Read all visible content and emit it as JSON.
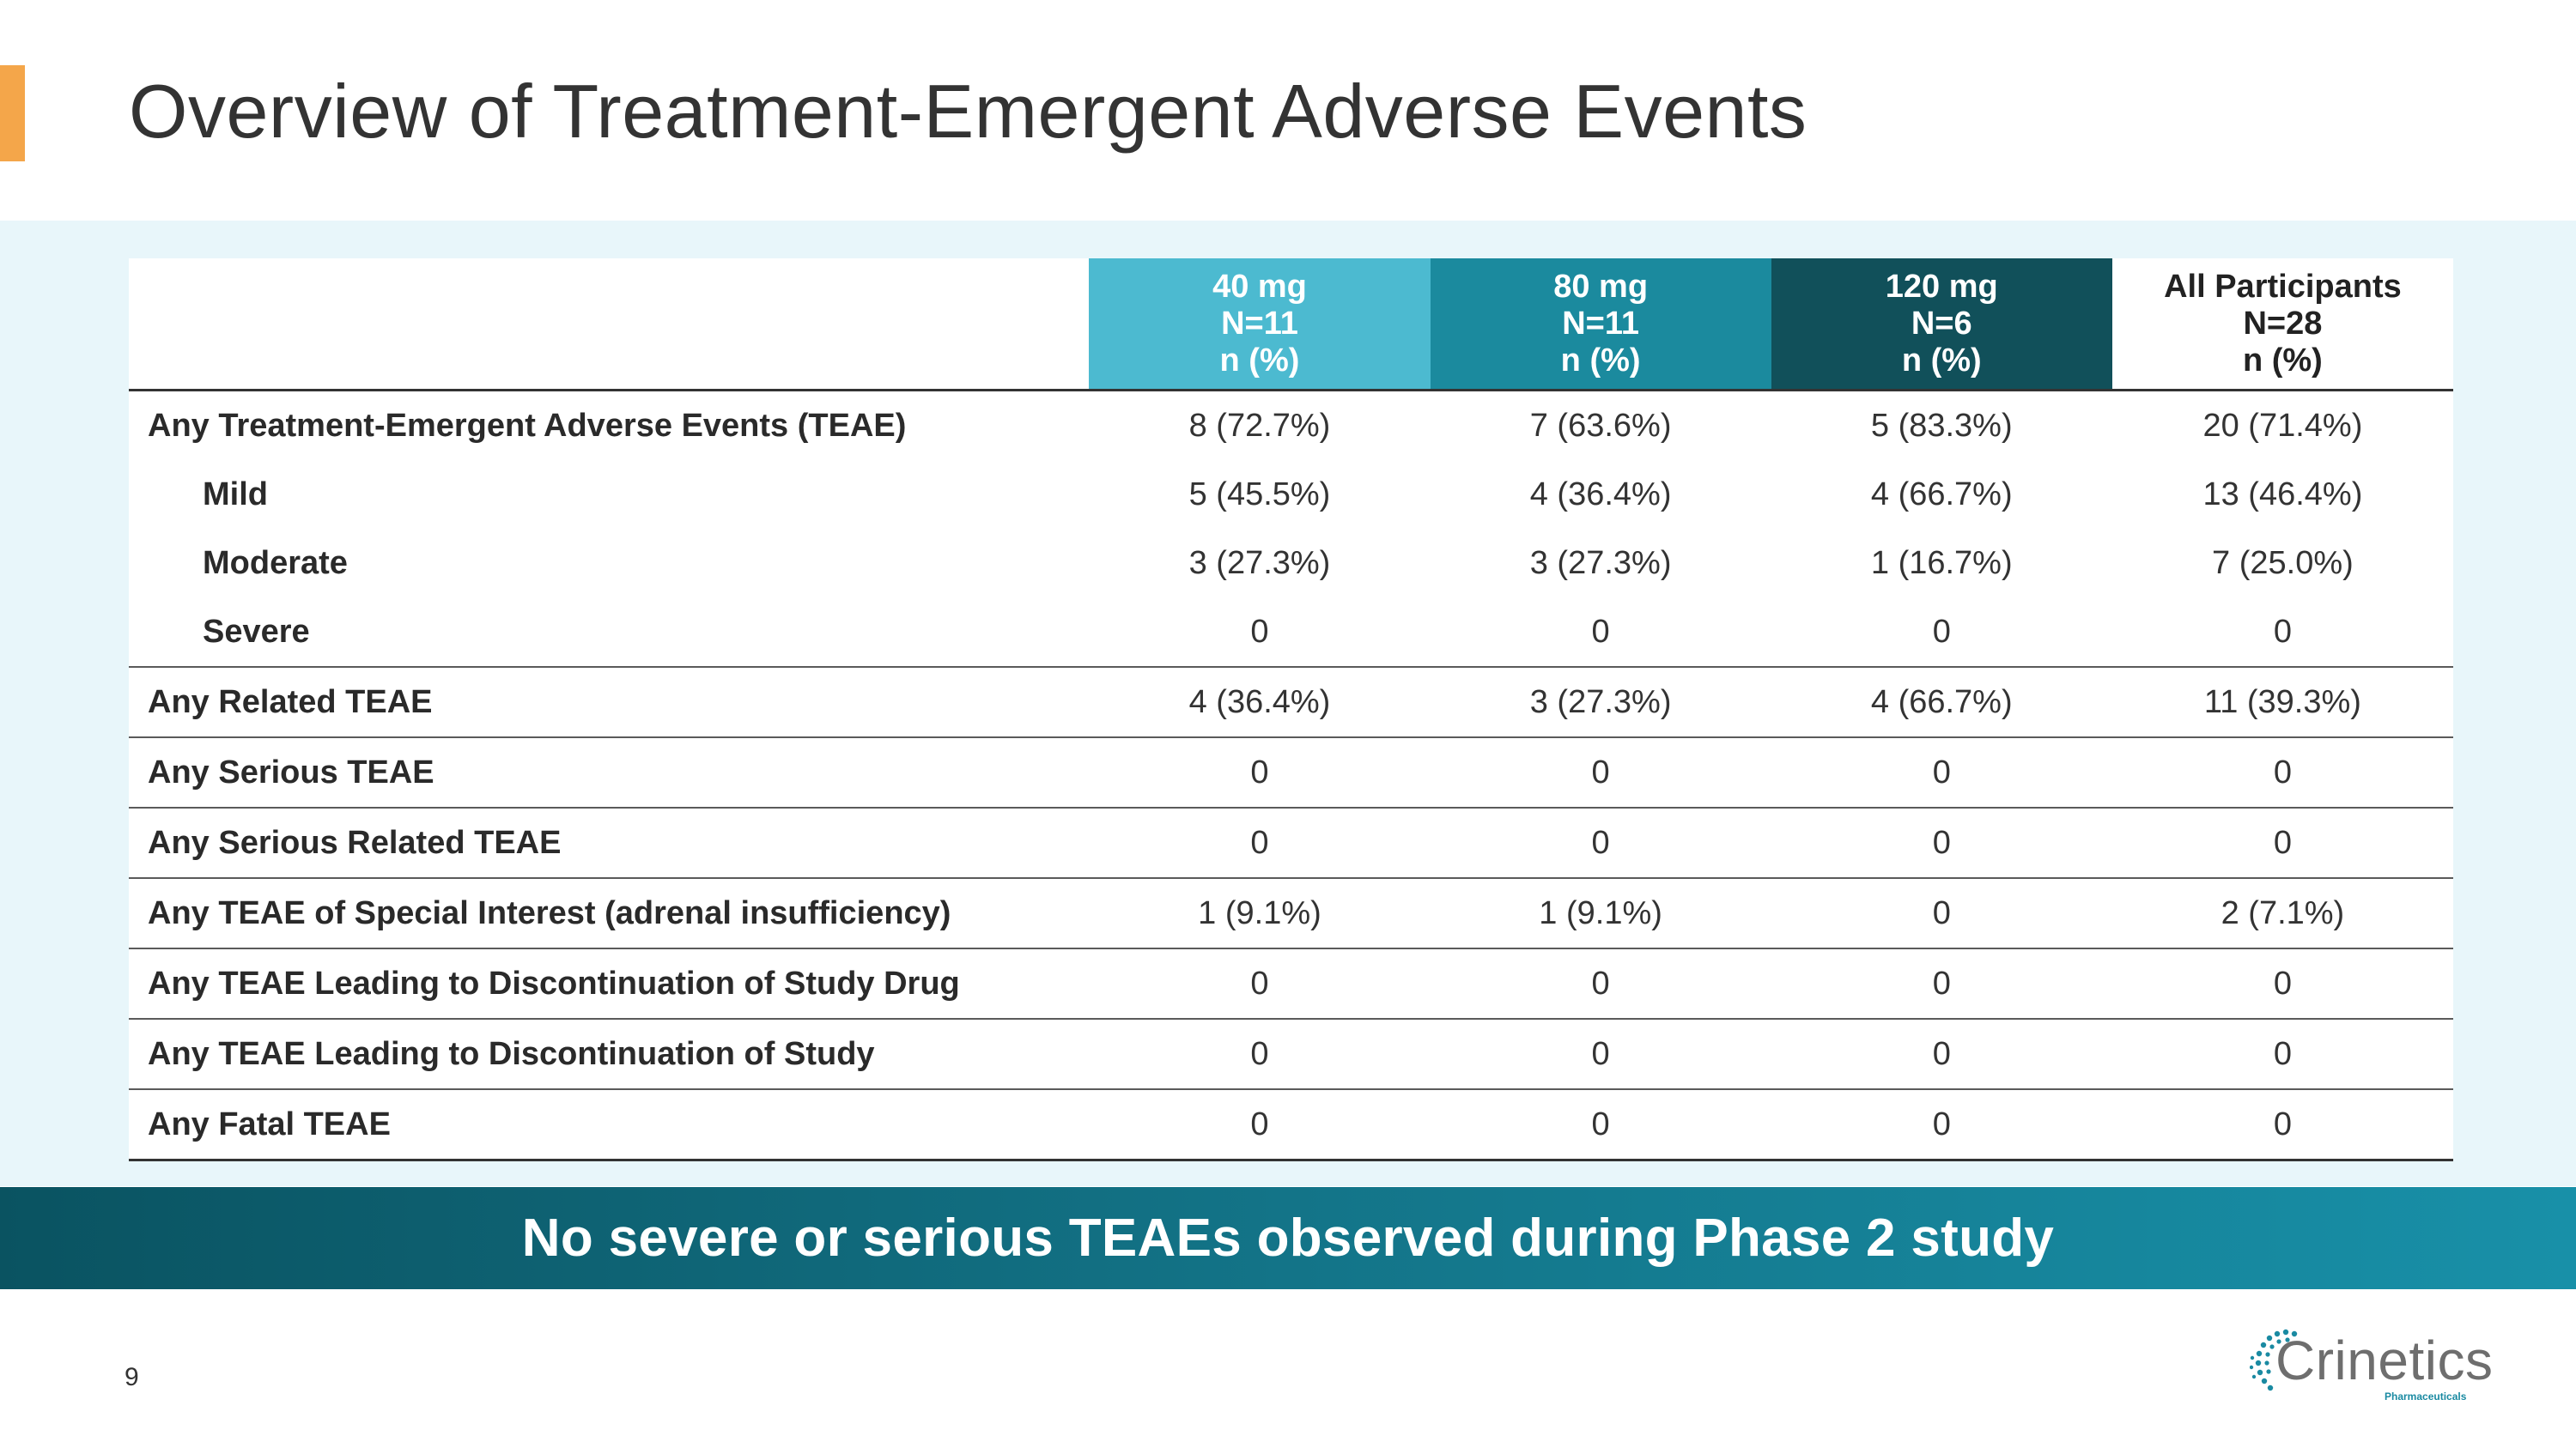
{
  "slide": {
    "title": "Overview of Treatment-Emergent Adverse Events",
    "page_number": "9",
    "banner": "No severe or serious TEAEs observed during Phase 2 study",
    "logo_text": "Crinetics",
    "logo_subtext": "Pharmaceuticals"
  },
  "colors": {
    "accent": "#f4a64a",
    "col_40mg": "#4cbad0",
    "col_80mg": "#1b8a9e",
    "col_120mg": "#11505a",
    "panel": "#e8f6fa",
    "banner_start": "#0a5361",
    "banner_end": "#1890a8"
  },
  "table": {
    "headers": [
      {
        "dose": "",
        "n": "",
        "unit": ""
      },
      {
        "dose": "40 mg",
        "n": "N=11",
        "unit": "n (%)"
      },
      {
        "dose": "80 mg",
        "n": "N=11",
        "unit": "n (%)"
      },
      {
        "dose": "120 mg",
        "n": "N=6",
        "unit": "n (%)"
      },
      {
        "dose": "All Participants",
        "n": "N=28",
        "unit": "n (%)"
      }
    ],
    "rows": [
      {
        "label": "Any Treatment-Emergent Adverse Events (TEAE)",
        "values": [
          "8 (72.7%)",
          "7 (63.6%)",
          "5 (83.3%)",
          "20 (71.4%)"
        ]
      },
      {
        "label": "Mild",
        "values": [
          "5 (45.5%)",
          "4 (36.4%)",
          "4 (66.7%)",
          "13 (46.4%)"
        ]
      },
      {
        "label": "Moderate",
        "values": [
          "3 (27.3%)",
          "3 (27.3%)",
          "1 (16.7%)",
          "7 (25.0%)"
        ]
      },
      {
        "label": "Severe",
        "values": [
          "0",
          "0",
          "0",
          "0"
        ]
      },
      {
        "label": "Any Related TEAE",
        "values": [
          "4 (36.4%)",
          "3 (27.3%)",
          "4 (66.7%)",
          "11 (39.3%)"
        ]
      },
      {
        "label": "Any Serious TEAE",
        "values": [
          "0",
          "0",
          "0",
          "0"
        ]
      },
      {
        "label": "Any Serious Related TEAE",
        "values": [
          "0",
          "0",
          "0",
          "0"
        ]
      },
      {
        "label": "Any TEAE of Special Interest (adrenal insufficiency)",
        "values": [
          "1 (9.1%)",
          "1 (9.1%)",
          "0",
          "2 (7.1%)"
        ]
      },
      {
        "label": "Any TEAE Leading to Discontinuation of Study Drug",
        "values": [
          "0",
          "0",
          "0",
          "0"
        ]
      },
      {
        "label": "Any TEAE Leading to Discontinuation of Study",
        "values": [
          "0",
          "0",
          "0",
          "0"
        ]
      },
      {
        "label": "Any Fatal TEAE",
        "values": [
          "0",
          "0",
          "0",
          "0"
        ]
      }
    ]
  }
}
